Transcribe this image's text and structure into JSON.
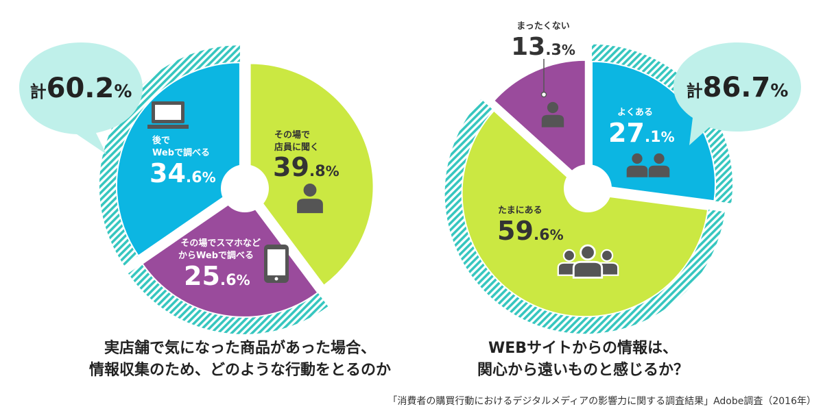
{
  "source_note": "「消費者の購買行動におけるデジタルメディアの影響力に関する調査結果」Adobe調査（2016年）",
  "colors": {
    "green": "#cbe842",
    "blue": "#0cb6e2",
    "purple": "#9a4b9c",
    "teal": "#36c6bf",
    "bubble": "#bff0ea",
    "dark": "#333333",
    "icon": "#555555"
  },
  "chart_data": [
    {
      "type": "pie",
      "title": "実店舗で気になった商品があった場合、情報収集のため、どのような行動をとるのか",
      "title_lines": [
        "実店舗で気になった商品があった場合、",
        "情報収集のため、どのような行動をとるのか"
      ],
      "slices": [
        {
          "label_lines": [
            "その場で",
            "店員に聞く"
          ],
          "value": 39.8,
          "value_int": "39",
          "value_dec": ".8",
          "unit": "%",
          "color": "#cbe842",
          "icon": "person-icon",
          "exploded": false
        },
        {
          "label_lines": [
            "その場でスマホなど",
            "からWebで調べる"
          ],
          "value": 25.6,
          "value_int": "25",
          "value_dec": ".6",
          "unit": "%",
          "color": "#9a4b9c",
          "icon": "smartphone-icon",
          "exploded": true
        },
        {
          "label_lines": [
            "後で",
            "Webで調べる"
          ],
          "value": 34.6,
          "value_int": "34",
          "value_dec": ".6",
          "unit": "%",
          "color": "#0cb6e2",
          "icon": "laptop-icon",
          "exploded": true
        }
      ],
      "callout": {
        "prefix": "計",
        "value": "60.2",
        "unit": "%"
      }
    },
    {
      "type": "pie",
      "title": "WEBサイトからの情報は、関心から遠いものと感じるか？",
      "title_lines": [
        "WEBサイトからの情報は、",
        "関心から遠いものと感じるか？"
      ],
      "slices": [
        {
          "label_lines": [
            "よくある"
          ],
          "value": 27.1,
          "value_int": "27",
          "value_dec": ".1",
          "unit": "%",
          "color": "#0cb6e2",
          "icon": "two-people-icon",
          "exploded": true
        },
        {
          "label_lines": [
            "たまにある"
          ],
          "value": 59.6,
          "value_int": "59",
          "value_dec": ".6",
          "unit": "%",
          "color": "#cbe842",
          "icon": "group-icon",
          "exploded": true
        },
        {
          "label_lines": [
            "まったくない"
          ],
          "value": 13.3,
          "value_int": "13",
          "value_dec": ".3",
          "unit": "%",
          "color": "#9a4b9c",
          "icon": "person-icon",
          "exploded": false
        }
      ],
      "callout": {
        "prefix": "計",
        "value": "86.7",
        "unit": "%"
      }
    }
  ]
}
